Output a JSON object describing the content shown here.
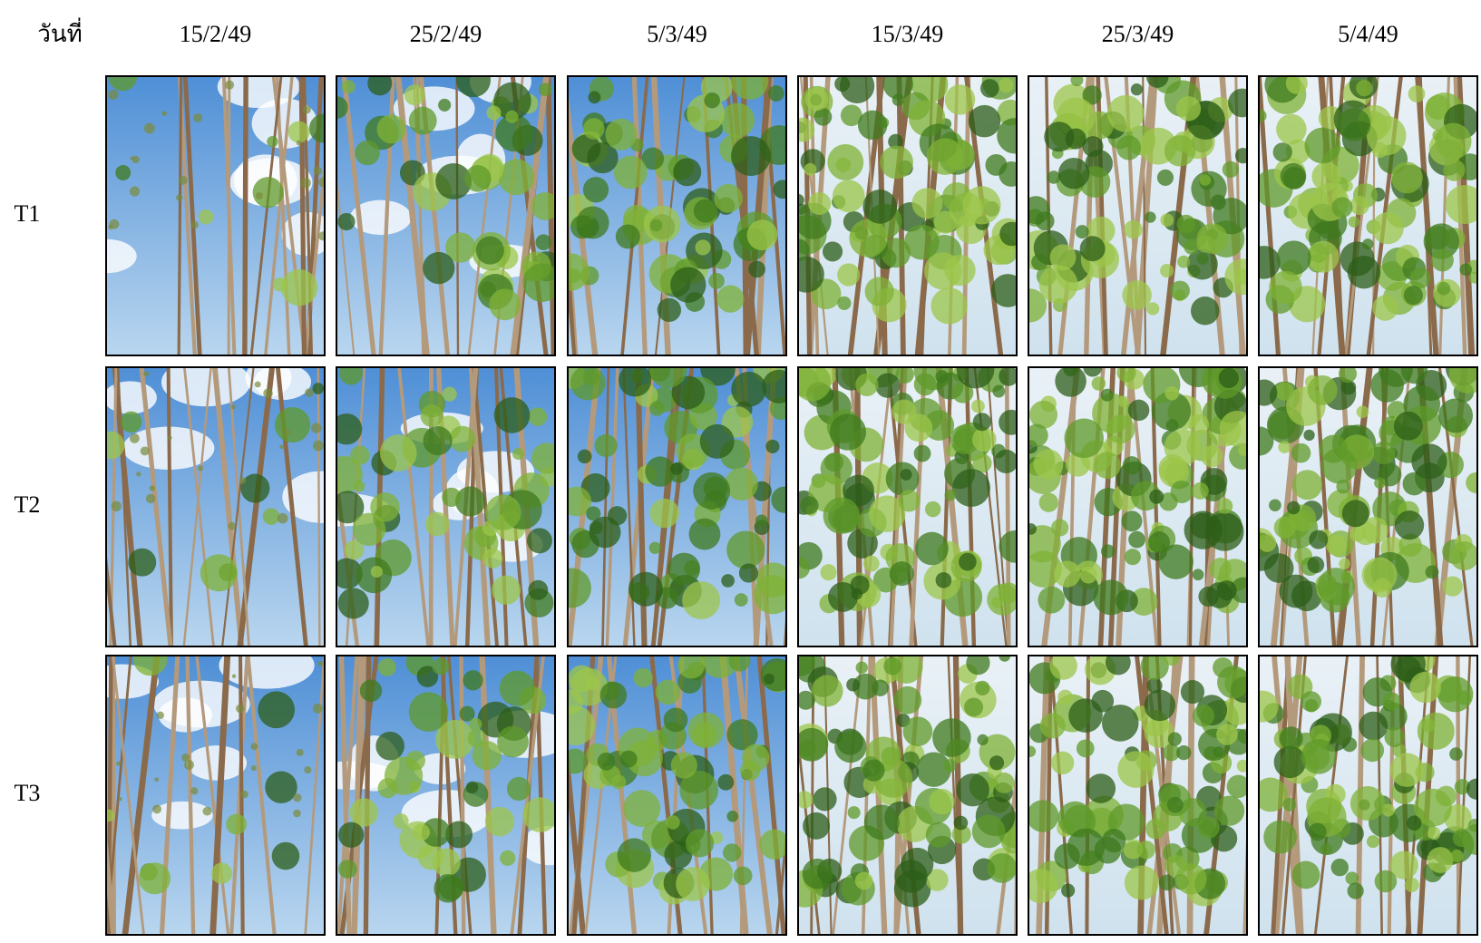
{
  "header": {
    "corner": "วันที่",
    "dates": [
      "15/2/49",
      "25/2/49",
      "5/3/49",
      "15/3/49",
      "25/3/49",
      "5/4/49"
    ]
  },
  "rows": [
    {
      "label": "T1"
    },
    {
      "label": "T2"
    },
    {
      "label": "T3"
    }
  ]
}
